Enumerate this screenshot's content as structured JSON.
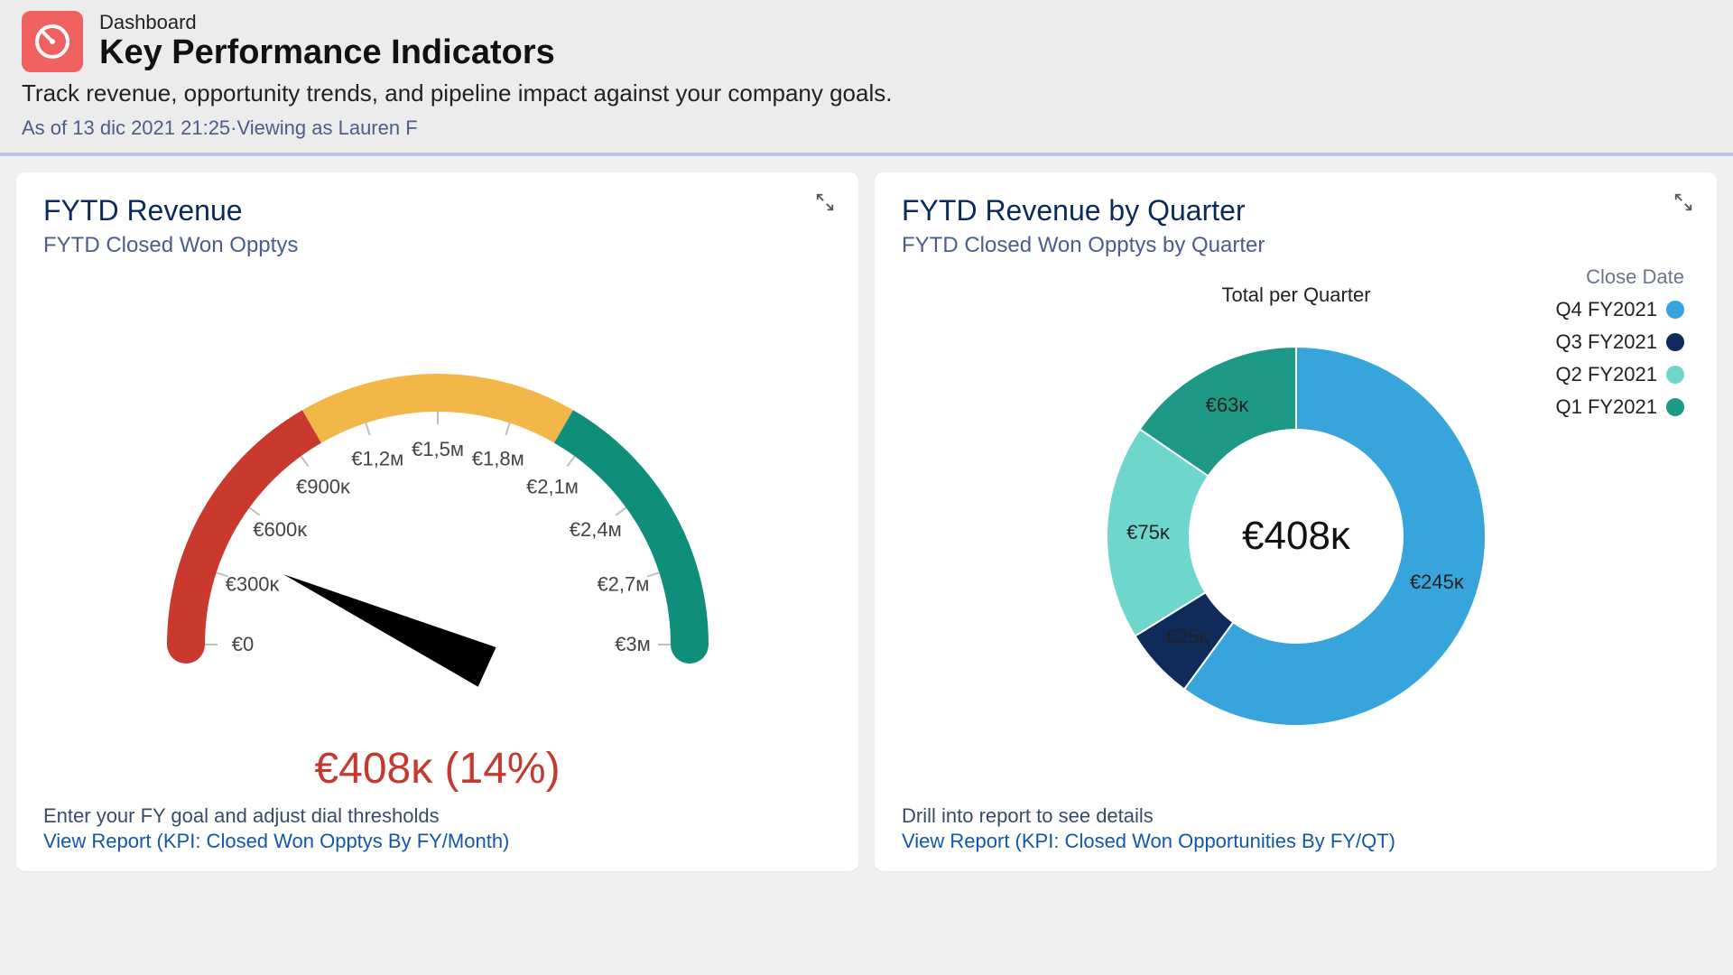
{
  "header": {
    "breadcrumb": "Dashboard",
    "title": "Key Performance Indicators",
    "description": "Track revenue, opportunity trends, and pipeline impact against your company goals.",
    "meta": "As of 13 dic 2021 21:25·Viewing as Lauren F",
    "icon_bg": "#f06160",
    "icon_fg": "#ffffff"
  },
  "gauge_card": {
    "title": "FYTD Revenue",
    "subtitle": "FYTD Closed Won Opptys",
    "footer_hint": "Enter your FY goal and adjust dial thresholds",
    "footer_link": "View Report (KPI: Closed Won Opptys By FY/Month)",
    "value_label": "€408ᴋ (14%)",
    "value_color": "#c43a2f",
    "chart": {
      "type": "gauge",
      "min": 0,
      "max": 3000000,
      "value": 408000,
      "percent": 14,
      "segments": [
        {
          "from": 0,
          "to": 1000000,
          "color": "#c9392e"
        },
        {
          "from": 1000000,
          "to": 2000000,
          "color": "#f3b749"
        },
        {
          "from": 2000000,
          "to": 3000000,
          "color": "#0f8f79"
        }
      ],
      "arc_outer_radius": 300,
      "arc_inner_radius": 258,
      "ticks": [
        {
          "value": 0,
          "label": "€0"
        },
        {
          "value": 300000,
          "label": "€300ᴋ"
        },
        {
          "value": 600000,
          "label": "€600ᴋ"
        },
        {
          "value": 900000,
          "label": "€900ᴋ"
        },
        {
          "value": 1200000,
          "label": "€1,2ᴍ"
        },
        {
          "value": 1500000,
          "label": "€1,5ᴍ"
        },
        {
          "value": 1800000,
          "label": "€1,8ᴍ"
        },
        {
          "value": 2100000,
          "label": "€2,1ᴍ"
        },
        {
          "value": 2400000,
          "label": "€2,4ᴍ"
        },
        {
          "value": 2700000,
          "label": "€2,7ᴍ"
        },
        {
          "value": 3000000,
          "label": "€3ᴍ"
        }
      ],
      "tick_color": "#bfbfbf",
      "tick_label_color": "#444444",
      "tick_label_fontsize": 22,
      "needle_color": "#000000",
      "background": "#ffffff"
    }
  },
  "donut_card": {
    "title": "FYTD Revenue by Quarter",
    "subtitle": "FYTD Closed Won Opptys by Quarter",
    "footer_hint": "Drill into report to see details",
    "footer_link": "View Report (KPI: Closed Won Opportunities By FY/QT)",
    "chart": {
      "type": "donut",
      "title": "Total per Quarter",
      "title_fontsize": 22,
      "center_label": "€408ᴋ",
      "center_fontsize": 44,
      "outer_radius": 210,
      "inner_radius": 118,
      "start_angle_deg": -90,
      "legend_title": "Close Date",
      "total": 408000,
      "slices": [
        {
          "label": "Q4 FY2021",
          "value": 245000,
          "display": "€245ᴋ",
          "color": "#37a5dc"
        },
        {
          "label": "Q3 FY2021",
          "value": 25000,
          "display": "€25ᴋ",
          "color": "#0f2b59"
        },
        {
          "label": "Q2 FY2021",
          "value": 75000,
          "display": "€75ᴋ",
          "color": "#6fd6cc"
        },
        {
          "label": "Q1 FY2021",
          "value": 63000,
          "display": "€63ᴋ",
          "color": "#1e9985"
        }
      ],
      "slice_label_fontsize": 22,
      "background": "#ffffff"
    }
  }
}
